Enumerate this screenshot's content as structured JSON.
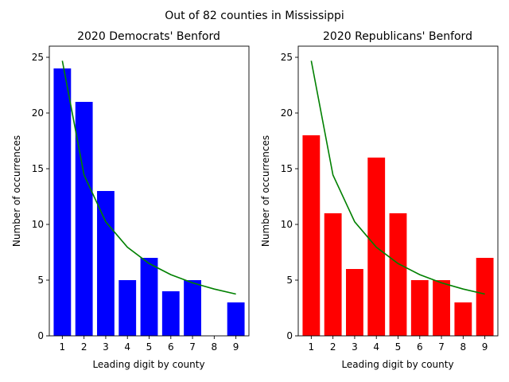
{
  "figure": {
    "suptitle": "Out of 82 counties in Mississippi"
  },
  "chart_data": [
    {
      "type": "bar",
      "title": "2020 Democrats' Benford",
      "xlabel": "Leading digit by county",
      "ylabel": "Number of occurrences",
      "categories": [
        "1",
        "2",
        "3",
        "4",
        "5",
        "6",
        "7",
        "8",
        "9"
      ],
      "values": [
        24,
        21,
        13,
        5,
        7,
        4,
        5,
        0,
        3
      ],
      "bar_color": "#0000ff",
      "expected_line": {
        "color": "#008000",
        "values": [
          24.69,
          14.44,
          10.24,
          7.95,
          6.49,
          5.49,
          4.76,
          4.2,
          3.75
        ]
      },
      "ylim": [
        0,
        26
      ],
      "yticks": [
        0,
        5,
        10,
        15,
        20,
        25
      ],
      "grid": false
    },
    {
      "type": "bar",
      "title": "2020 Republicans' Benford",
      "xlabel": "Leading digit by county",
      "ylabel": "Number of occurrences",
      "categories": [
        "1",
        "2",
        "3",
        "4",
        "5",
        "6",
        "7",
        "8",
        "9"
      ],
      "values": [
        18,
        11,
        6,
        16,
        11,
        5,
        5,
        3,
        7
      ],
      "bar_color": "#ff0000",
      "expected_line": {
        "color": "#008000",
        "values": [
          24.69,
          14.44,
          10.24,
          7.95,
          6.49,
          5.49,
          4.76,
          4.2,
          3.75
        ]
      },
      "ylim": [
        0,
        26
      ],
      "yticks": [
        0,
        5,
        10,
        15,
        20,
        25
      ],
      "grid": false
    }
  ]
}
